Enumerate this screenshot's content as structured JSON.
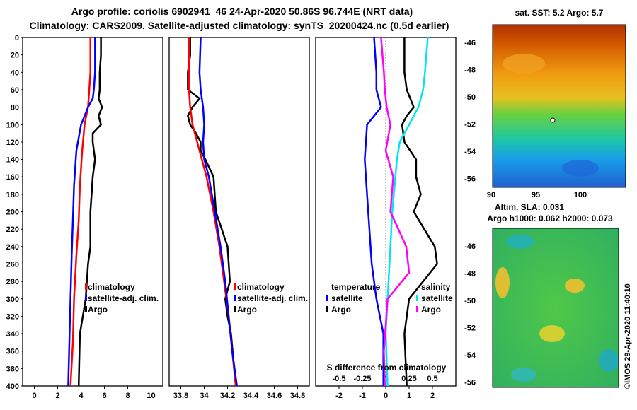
{
  "header": {
    "line1": "Argo profile: coriolis 6902941_46 24-Apr-2020 50.86S 96.744E (NRT data)",
    "line2": "Climatology: CARS2009. Satellite-adjusted climatology: synTS_20200424.nc (0.5d earlier)"
  },
  "colors": {
    "argo": "#000000",
    "climatology": "#ff0000",
    "satellite": "#0000ff",
    "sal_satellite": "#00e5ee",
    "sal_argo": "#ff00ff"
  },
  "chart_data": [
    {
      "type": "line",
      "name": "temperature-profile",
      "xlim": [
        -1,
        11
      ],
      "ylim": [
        400,
        0
      ],
      "xticks": [
        "0",
        "2",
        "4",
        "6",
        "8",
        "10"
      ],
      "yticks": [
        "0",
        "20",
        "40",
        "60",
        "80",
        "100",
        "120",
        "140",
        "160",
        "180",
        "200",
        "220",
        "240",
        "260",
        "280",
        "300",
        "320",
        "340",
        "360",
        "380",
        "400"
      ],
      "legend": [
        "climatology",
        "satellite-adj. clim.",
        "Argo"
      ],
      "series": [
        {
          "name": "Argo",
          "depth": [
            0,
            20,
            40,
            60,
            70,
            80,
            90,
            100,
            110,
            120,
            140,
            160,
            180,
            200,
            240,
            260,
            300,
            340,
            400
          ],
          "values": [
            5.7,
            5.7,
            5.6,
            5.6,
            5.5,
            5.8,
            5.5,
            5.7,
            5.0,
            5.0,
            5.2,
            5.0,
            4.9,
            4.8,
            4.8,
            4.6,
            4.4,
            3.9,
            3.8
          ]
        },
        {
          "name": "climatology",
          "depth": [
            0,
            40,
            60,
            80,
            100,
            130,
            170,
            210,
            250,
            300,
            350,
            400
          ],
          "values": [
            4.8,
            4.8,
            4.7,
            4.6,
            4.3,
            4.1,
            3.9,
            3.8,
            3.6,
            3.4,
            3.3,
            3.1
          ]
        },
        {
          "name": "satellite-adj. clim.",
          "depth": [
            0,
            40,
            60,
            70,
            80,
            100,
            130,
            170,
            210,
            250,
            300,
            350,
            400
          ],
          "values": [
            5.2,
            5.2,
            5.1,
            5.0,
            4.6,
            4.0,
            3.6,
            3.4,
            3.3,
            3.2,
            3.1,
            3.0,
            2.9
          ]
        }
      ]
    },
    {
      "type": "line",
      "name": "salinity-profile",
      "xlim": [
        33.7,
        34.9
      ],
      "ylim": [
        400,
        0
      ],
      "xticks": [
        "33.8",
        "34",
        "34.2",
        "34.4",
        "34.6",
        "34.8"
      ],
      "legend": [
        "climatology",
        "satellite-adj. clim.",
        "Argo"
      ],
      "series": [
        {
          "name": "Argo",
          "depth": [
            0,
            20,
            40,
            60,
            70,
            80,
            90,
            100,
            110,
            120,
            130,
            140,
            160,
            200,
            240,
            280,
            300,
            320,
            340,
            400
          ],
          "values": [
            33.88,
            33.88,
            33.86,
            33.86,
            33.96,
            33.9,
            33.86,
            33.88,
            33.93,
            33.97,
            33.97,
            34.01,
            34.08,
            34.1,
            34.2,
            34.22,
            34.18,
            34.2,
            34.23,
            34.27
          ]
        },
        {
          "name": "climatology",
          "depth": [
            0,
            40,
            60,
            80,
            100,
            120,
            140,
            160,
            200,
            240,
            280,
            320,
            360,
            400
          ],
          "values": [
            33.87,
            33.87,
            33.87,
            33.88,
            33.9,
            33.94,
            33.98,
            34.02,
            34.08,
            34.13,
            34.17,
            34.21,
            34.24,
            34.27
          ]
        },
        {
          "name": "satellite-adj. clim.",
          "depth": [
            0,
            40,
            60,
            80,
            100,
            120,
            140,
            160,
            200,
            240,
            280,
            320,
            360,
            400
          ],
          "values": [
            33.97,
            33.96,
            33.97,
            33.99,
            34.0,
            33.99,
            34.0,
            34.04,
            34.09,
            34.14,
            34.18,
            34.21,
            34.24,
            34.28
          ]
        }
      ]
    },
    {
      "type": "line",
      "name": "difference-from-climatology",
      "xlim": [
        -3,
        3
      ],
      "ylim": [
        400,
        0
      ],
      "temp_xticks": [
        "-2",
        "-1",
        "0",
        "1",
        "2"
      ],
      "sal_xticks": [
        "-0.5",
        "-0.25",
        "0",
        "0.25",
        "0.5"
      ],
      "xlabel": "S difference from climatology",
      "legend_temperature": {
        "title": "temperature",
        "items": [
          "satellite",
          "Argo"
        ]
      },
      "legend_salinity": {
        "title": "salinity",
        "items": [
          "satellite",
          "Argo"
        ]
      },
      "series": [
        {
          "name": "temperature Argo",
          "depth": [
            0,
            20,
            40,
            60,
            80,
            90,
            100,
            120,
            140,
            160,
            180,
            200,
            240,
            260,
            300,
            340,
            400
          ],
          "values": [
            0.8,
            0.8,
            0.8,
            0.9,
            1.2,
            0.9,
            0.7,
            0.8,
            1.3,
            1.3,
            1.5,
            1.2,
            2.1,
            2.2,
            1.0,
            0.8,
            0.9
          ]
        },
        {
          "name": "temperature satellite",
          "depth": [
            0,
            40,
            60,
            80,
            100,
            140,
            180,
            220,
            260,
            300,
            340,
            400
          ],
          "values": [
            -0.5,
            -0.4,
            -0.4,
            -0.2,
            -0.8,
            -0.9,
            -0.8,
            -0.7,
            -0.6,
            -0.4,
            -0.1,
            -0.1
          ]
        },
        {
          "name": "salinity satellite",
          "depth": [
            0,
            40,
            60,
            80,
            100,
            120,
            140,
            200,
            260,
            300,
            340,
            400
          ],
          "values": [
            0.45,
            0.42,
            0.4,
            0.35,
            0.25,
            0.15,
            0.12,
            0.07,
            0.04,
            0.02,
            0.0,
            0.02
          ]
        },
        {
          "name": "salinity Argo",
          "depth": [
            0,
            40,
            60,
            80,
            100,
            130,
            160,
            200,
            240,
            270,
            300,
            330,
            360,
            400
          ],
          "values": [
            -0.05,
            -0.02,
            -0.01,
            0.01,
            0.05,
            0.0,
            0.08,
            0.05,
            0.22,
            0.25,
            0.02,
            0.0,
            -0.02,
            -0.01
          ]
        }
      ]
    },
    {
      "type": "heatmap",
      "name": "sst-map",
      "title": "sat. SST: 5.2 Argo: 5.7",
      "xticks": [
        "90",
        "95",
        "100"
      ],
      "yticks": [
        "-46",
        "-48",
        "-50",
        "-52",
        "-54",
        "-56"
      ]
    },
    {
      "type": "heatmap",
      "name": "sla-map",
      "title_line1": "Altim. SLA: 0.031",
      "title_line2": "Argo h1000: 0.062 h2000: 0.073",
      "yticks": [
        "-46",
        "-48",
        "-50",
        "-52",
        "-54",
        "-56"
      ]
    }
  ],
  "credit": "©IMOS 29-Apr-2020 11:40:10"
}
